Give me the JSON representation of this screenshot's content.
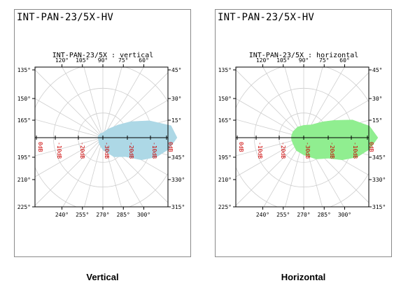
{
  "panels": [
    {
      "header": "INT-PAN-23/5X-HV",
      "caption": "Vertical",
      "chart_data": {
        "type": "polar-area",
        "title": "INT-PAN-23/5X : vertical",
        "top_labels": [
          "120°",
          "105°",
          "90°",
          "75°",
          "60°"
        ],
        "bottom_labels": [
          "240°",
          "255°",
          "270°",
          "285°",
          "300°"
        ],
        "left_labels": [
          "135°",
          "150°",
          "165°",
          "195°",
          "210°",
          "225°"
        ],
        "right_labels": [
          "45°",
          "30°",
          "15°",
          "345°",
          "330°",
          "315°"
        ],
        "db_labels": [
          "0dB",
          "-10dB",
          "-20dB",
          "-30dB",
          "-20dB",
          "-10dB",
          "0dB"
        ],
        "fill_color": "#add8e6",
        "angles_deg": [
          0,
          10,
          20,
          30,
          40,
          60,
          90,
          120,
          150,
          170,
          180,
          190,
          210,
          240,
          270,
          300,
          320,
          330,
          340,
          350
        ],
        "levels_db": [
          0,
          -2,
          -10,
          -17,
          -22,
          -26,
          -28,
          -28,
          -28,
          -28,
          -28,
          -28,
          -28,
          -27,
          -25,
          -21,
          -18,
          -12,
          -7,
          -3
        ]
      }
    },
    {
      "header": "INT-PAN-23/5X-HV",
      "caption": "Horizontal",
      "chart_data": {
        "type": "polar-area",
        "title": "INT-PAN-23/5X : horizontal",
        "top_labels": [
          "120°",
          "105°",
          "90°",
          "75°",
          "60°"
        ],
        "bottom_labels": [
          "240°",
          "255°",
          "270°",
          "285°",
          "300°"
        ],
        "left_labels": [
          "135°",
          "150°",
          "165°",
          "195°",
          "210°",
          "225°"
        ],
        "right_labels": [
          "45°",
          "30°",
          "15°",
          "345°",
          "330°",
          "315°"
        ],
        "db_labels": [
          "0dB",
          "-10dB",
          "-20dB",
          "-30dB",
          "-20dB",
          "-10dB",
          "0dB"
        ],
        "fill_color": "#90ee90",
        "angles_deg": [
          0,
          10,
          20,
          30,
          40,
          60,
          90,
          120,
          150,
          170,
          180,
          190,
          210,
          240,
          270,
          300,
          320,
          330,
          340,
          350
        ],
        "levels_db": [
          0,
          -3,
          -9,
          -16,
          -20,
          -24,
          -25,
          -25,
          -25,
          -25,
          -25,
          -25,
          -25,
          -24,
          -23,
          -20,
          -17,
          -12,
          -7,
          -3
        ]
      }
    }
  ]
}
